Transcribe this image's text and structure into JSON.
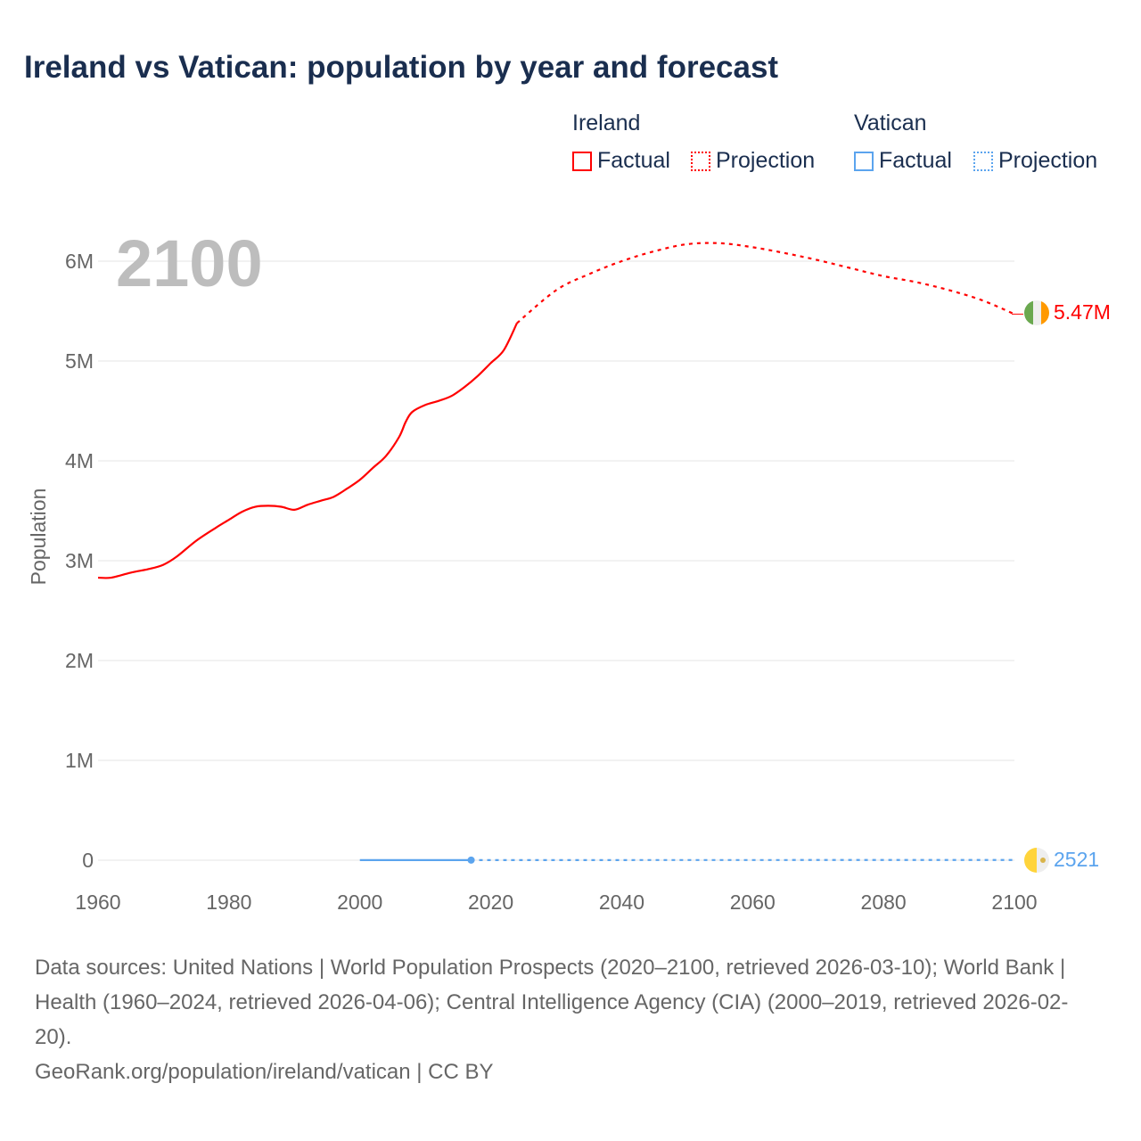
{
  "title": "Ireland vs Vatican: population by year and forecast",
  "legend": {
    "groups": [
      {
        "name": "Ireland",
        "factual": "Factual",
        "projection": "Projection",
        "color": "#ff0000"
      },
      {
        "name": "Vatican",
        "factual": "Factual",
        "projection": "Projection",
        "color": "#5ba4ee"
      }
    ]
  },
  "year_overlay": "2100",
  "footer": {
    "sources": "Data sources: United Nations | World Population Prospects (2020–2100, retrieved 2026-03-10); World Bank | Health (1960–2024, retrieved 2026-04-06); Central Intelligence Agency (CIA) (2000–2019, retrieved 2026-02-20).",
    "credit": "GeoRank.org/population/ireland/vatican | CC BY"
  },
  "chart_data": {
    "type": "line",
    "title": "Ireland vs Vatican: population by year and forecast",
    "xlabel": "",
    "ylabel": "Population",
    "xlim": [
      1960,
      2100
    ],
    "ylim": [
      0,
      6000000
    ],
    "xticks": [
      "1960",
      "1980",
      "2000",
      "2020",
      "2040",
      "2060",
      "2080",
      "2100"
    ],
    "yticks": [
      {
        "v": 0,
        "label": "0"
      },
      {
        "v": 1000000,
        "label": "1M"
      },
      {
        "v": 2000000,
        "label": "2M"
      },
      {
        "v": 3000000,
        "label": "3M"
      },
      {
        "v": 4000000,
        "label": "4M"
      },
      {
        "v": 5000000,
        "label": "5M"
      },
      {
        "v": 6000000,
        "label": "6M"
      }
    ],
    "grid": true,
    "series": [
      {
        "name": "Ireland Factual",
        "color": "#ff0000",
        "dashed": false,
        "x": [
          1960,
          1962,
          1965,
          1968,
          1970,
          1972,
          1975,
          1978,
          1980,
          1982,
          1984,
          1986,
          1988,
          1990,
          1992,
          1994,
          1996,
          1998,
          2000,
          2002,
          2004,
          2006,
          2007,
          2008,
          2010,
          2012,
          2014,
          2016,
          2018,
          2020,
          2022,
          2024
        ],
        "y": [
          2830000,
          2830000,
          2880000,
          2920000,
          2960000,
          3040000,
          3200000,
          3330000,
          3410000,
          3490000,
          3540000,
          3550000,
          3540000,
          3510000,
          3560000,
          3600000,
          3640000,
          3720000,
          3810000,
          3930000,
          4050000,
          4240000,
          4390000,
          4490000,
          4560000,
          4600000,
          4650000,
          4740000,
          4850000,
          4980000,
          5110000,
          5380000
        ]
      },
      {
        "name": "Ireland Projection",
        "color": "#ff0000",
        "dashed": true,
        "x": [
          2024,
          2030,
          2035,
          2040,
          2045,
          2050,
          2055,
          2060,
          2065,
          2070,
          2075,
          2080,
          2085,
          2090,
          2095,
          2100
        ],
        "y": [
          5380000,
          5710000,
          5870000,
          6000000,
          6100000,
          6170000,
          6180000,
          6140000,
          6080000,
          6010000,
          5930000,
          5850000,
          5790000,
          5710000,
          5610000,
          5470000
        ]
      },
      {
        "name": "Vatican Factual",
        "color": "#5ba4ee",
        "dashed": false,
        "x": [
          2000,
          2017
        ],
        "y": [
          870,
          1000
        ]
      },
      {
        "name": "Vatican Projection",
        "color": "#5ba4ee",
        "dashed": true,
        "x": [
          2017,
          2100
        ],
        "y": [
          1000,
          2521
        ]
      }
    ],
    "end_labels": [
      {
        "series": "Ireland",
        "value": 5470000,
        "label": "5.47M",
        "color": "#ff0000"
      },
      {
        "series": "Vatican",
        "value": 2521,
        "label": "2521",
        "color": "#5ba4ee"
      }
    ]
  }
}
